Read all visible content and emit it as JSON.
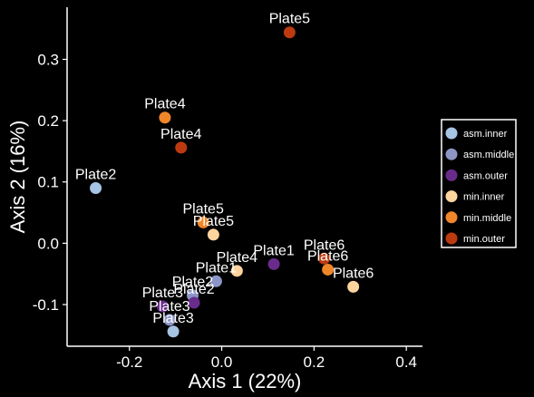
{
  "chart_data": {
    "type": "scatter",
    "xlabel": "Axis 1 (22%)",
    "ylabel": "Axis 2 (16%)",
    "xlim": [
      -0.335,
      0.435
    ],
    "ylim": [
      -0.168,
      0.385
    ],
    "x_ticks": [
      -0.2,
      0.0,
      0.2,
      0.4
    ],
    "x_tick_labels": [
      "-0.2",
      "0.0",
      "0.2",
      "0.4"
    ],
    "y_ticks": [
      -0.1,
      0.0,
      0.1,
      0.2,
      0.3
    ],
    "y_tick_labels": [
      "-0.1",
      "0.0",
      "0.1",
      "0.2",
      "0.3"
    ],
    "grid": false,
    "legend_position": "right",
    "series": [
      {
        "name": "asm.inner",
        "color": "#a6c4e4",
        "points": [
          {
            "x": -0.273,
            "y": 0.09,
            "label": "Plate2"
          },
          {
            "x": -0.105,
            "y": -0.144,
            "label": "Plate3"
          }
        ]
      },
      {
        "name": "asm.middle",
        "color": "#8c96c6",
        "points": [
          {
            "x": -0.012,
            "y": -0.062,
            "label": "Plate1"
          },
          {
            "x": -0.063,
            "y": -0.085,
            "label": "Plate2"
          },
          {
            "x": -0.113,
            "y": -0.125,
            "label": "Plate3"
          }
        ]
      },
      {
        "name": "asm.outer",
        "color": "#6a2c8c",
        "points": [
          {
            "x": 0.113,
            "y": -0.034,
            "label": "Plate1"
          },
          {
            "x": -0.06,
            "y": -0.097,
            "label": "Plate2"
          },
          {
            "x": -0.128,
            "y": -0.103,
            "label": "Plate3"
          }
        ]
      },
      {
        "name": "min.inner",
        "color": "#fdd49e",
        "points": [
          {
            "x": 0.033,
            "y": -0.045,
            "label": "Plate4"
          },
          {
            "x": -0.018,
            "y": 0.014,
            "label": "Plate5"
          },
          {
            "x": 0.285,
            "y": -0.071,
            "label": "Plate6"
          }
        ]
      },
      {
        "name": "min.middle",
        "color": "#f0862a",
        "points": [
          {
            "x": -0.123,
            "y": 0.205,
            "label": "Plate4"
          },
          {
            "x": -0.04,
            "y": 0.034,
            "label": "Plate5"
          },
          {
            "x": 0.23,
            "y": -0.043,
            "label": "Plate6"
          }
        ]
      },
      {
        "name": "min.outer",
        "color": "#bc3a10",
        "points": [
          {
            "x": -0.088,
            "y": 0.156,
            "label": "Plate4"
          },
          {
            "x": 0.147,
            "y": 0.344,
            "label": "Plate5"
          },
          {
            "x": 0.222,
            "y": -0.025,
            "label": "Plate6"
          }
        ]
      }
    ]
  }
}
